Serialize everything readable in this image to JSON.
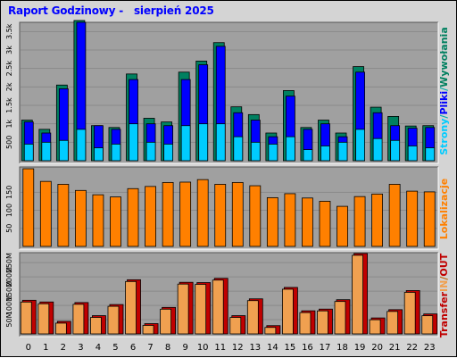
{
  "title": "Raport Godzinowy -   sierpień 2025",
  "colors": {
    "frame_bg": "#d4d4d4",
    "plot_bg": "#a0a0a0",
    "title": "#0000ff",
    "strony": "#00ccff",
    "pliki": "#0000ff",
    "wywolania": "#008060",
    "lokalizacje": "#ff8000",
    "transfer_in": "#f0a050",
    "transfer_out": "#c00000"
  },
  "chart_data": [
    {
      "type": "bar",
      "name": "requests",
      "x": [
        "0",
        "1",
        "2",
        "3",
        "4",
        "5",
        "6",
        "7",
        "8",
        "9",
        "10",
        "11",
        "12",
        "13",
        "14",
        "15",
        "16",
        "17",
        "18",
        "19",
        "20",
        "21",
        "22",
        "23"
      ],
      "ylim": [
        0,
        3750
      ],
      "yticks": [
        "500",
        "1k",
        "1.5k",
        "2k",
        "2.5k",
        "3k",
        "3.5k"
      ],
      "ytick_values": [
        500,
        1000,
        1500,
        2000,
        2500,
        3000,
        3500
      ],
      "series": [
        {
          "name": "Wywołania",
          "values": [
            1100,
            850,
            2050,
            3800,
            950,
            900,
            2350,
            1150,
            1050,
            2400,
            2700,
            3200,
            1460,
            1250,
            750,
            1900,
            900,
            1100,
            750,
            2550,
            1450,
            1200,
            940,
            950
          ]
        },
        {
          "name": "Pliki",
          "values": [
            1050,
            750,
            1950,
            3750,
            950,
            850,
            2200,
            1000,
            950,
            2200,
            2600,
            3100,
            1300,
            1100,
            650,
            1750,
            850,
            1000,
            650,
            2400,
            1300,
            950,
            880,
            900
          ]
        },
        {
          "name": "Strony",
          "values": [
            450,
            500,
            550,
            850,
            350,
            450,
            1000,
            500,
            450,
            950,
            1000,
            1000,
            650,
            500,
            450,
            650,
            300,
            400,
            500,
            850,
            600,
            550,
            400,
            350
          ]
        }
      ],
      "legend": [
        "Strony",
        "/",
        "Pliki",
        "/",
        "Wywołania"
      ]
    },
    {
      "type": "bar",
      "name": "locations",
      "x": [
        "0",
        "1",
        "2",
        "3",
        "4",
        "5",
        "6",
        "7",
        "8",
        "9",
        "10",
        "11",
        "12",
        "13",
        "14",
        "15",
        "16",
        "17",
        "18",
        "19",
        "20",
        "21",
        "22",
        "23"
      ],
      "ylim": [
        0,
        220
      ],
      "yticks": [
        "50",
        "100",
        "150"
      ],
      "ytick_values": [
        50,
        100,
        150
      ],
      "series": [
        {
          "name": "Lokalizacje",
          "values": [
            215,
            180,
            172,
            155,
            143,
            137,
            160,
            166,
            177,
            178,
            185,
            172,
            177,
            168,
            135,
            146,
            134,
            125,
            111,
            138,
            145,
            172,
            153,
            151
          ]
        }
      ],
      "legend": [
        "Lokalizacje"
      ]
    },
    {
      "type": "bar",
      "name": "transfer",
      "x": [
        "0",
        "1",
        "2",
        "3",
        "4",
        "5",
        "6",
        "7",
        "8",
        "9",
        "10",
        "11",
        "12",
        "13",
        "14",
        "15",
        "16",
        "17",
        "18",
        "19",
        "20",
        "21",
        "22",
        "23"
      ],
      "ylim": [
        0,
        285
      ],
      "yticks": [
        "50M",
        "100M",
        "150M",
        "200M",
        "250M"
      ],
      "ytick_values": [
        50,
        100,
        150,
        200,
        250
      ],
      "series": [
        {
          "name": "IN",
          "values": [
            118,
            112,
            44,
            110,
            64,
            103,
            190,
            36,
            93,
            181,
            180,
            195,
            64,
            123,
            29,
            163,
            81,
            87,
            120,
            282,
            56,
            85,
            152,
            70
          ]
        },
        {
          "name": "OUT",
          "values": [
            118,
            112,
            44,
            110,
            64,
            103,
            190,
            36,
            93,
            181,
            180,
            195,
            64,
            123,
            29,
            163,
            81,
            87,
            120,
            282,
            56,
            85,
            152,
            70
          ]
        }
      ],
      "legend": [
        "Transfer",
        "IN",
        "/",
        "OUT"
      ]
    }
  ],
  "x_labels": [
    "0",
    "1",
    "2",
    "3",
    "4",
    "5",
    "6",
    "7",
    "8",
    "9",
    "10",
    "11",
    "12",
    "13",
    "14",
    "15",
    "16",
    "17",
    "18",
    "19",
    "20",
    "21",
    "22",
    "23"
  ]
}
